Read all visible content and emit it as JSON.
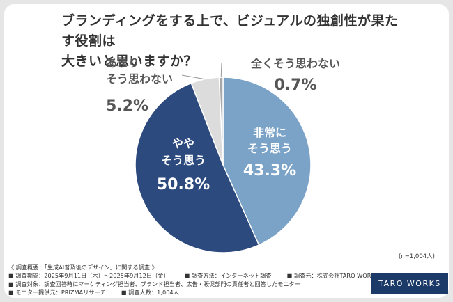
{
  "title_line1": "ブランディングをする上で、ビジュアルの独創性が果たす役割は",
  "title_line2": "大きいと思いますか？",
  "n_label": "(n=1,004人)",
  "survey": {
    "heading": "《 調査概要：「生成AI普及後のデザイン」に関する調査 》",
    "period": "■ 調査期間：2025年9月11日（木）〜2025年9月12日（金）",
    "method": "■ 調査方法：インターネット調査",
    "organizer": "■ 調査元：株式会社TARO WORKS",
    "target": "■ 調査対象：調査回答時にマーケティング担当者、ブランド担当者、広告・販促部門の責任者と回答したモニター",
    "provider": "■ モニター提供元：PRIZMAリサーチ",
    "count": "■ 調査人数：1,004人"
  },
  "logo_text": "TARO WORKS",
  "chart_data": {
    "type": "pie",
    "title": "ブランディングをする上で、ビジュアルの独創性が果たす役割は大きいと思いますか？",
    "slices": [
      {
        "label_lines": [
          "非常に",
          "そう思う"
        ],
        "value": 43.3,
        "value_text": "43.3%",
        "color": "#7ba3c8"
      },
      {
        "label_lines": [
          "やや",
          "そう思う"
        ],
        "value": 50.8,
        "value_text": "50.8%",
        "color": "#2c4a7e"
      },
      {
        "label_lines": [
          "あまり",
          "そう思わない"
        ],
        "value": 5.2,
        "value_text": "5.2%",
        "color": "#dcdcdc"
      },
      {
        "label_lines": [
          "全くそう思わない"
        ],
        "value": 0.7,
        "value_text": "0.7%",
        "color": "#a8a8a8"
      }
    ]
  }
}
